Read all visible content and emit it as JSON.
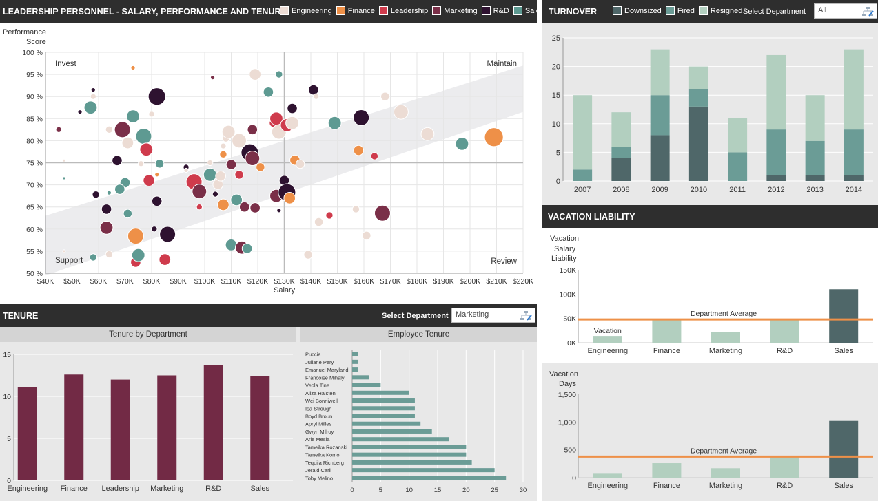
{
  "scatter_panel": {
    "title": "LEADERSHIP PERSONNEL - SALARY, PERFORMANCE AND TENURE",
    "legend": [
      {
        "label": "Engineering",
        "color": "#ecdcd4"
      },
      {
        "label": "Finance",
        "color": "#ee9048"
      },
      {
        "label": "Leadership",
        "color": "#cf3b4c"
      },
      {
        "label": "Marketing",
        "color": "#7a2f48"
      },
      {
        "label": "R&D",
        "color": "#2e1230"
      },
      {
        "label": "Sales",
        "color": "#5e9a92"
      }
    ],
    "ylabel_line1": "Performance",
    "ylabel_line2": "Score",
    "xlabel": "Salary",
    "quadrants": {
      "tl": "Invest",
      "tr": "Maintain",
      "bl": "Support",
      "br": "Review"
    }
  },
  "turnover_panel": {
    "title": "TURNOVER",
    "legend": [
      {
        "label": "Downsized",
        "color": "#4f6769"
      },
      {
        "label": "Fired",
        "color": "#6b9c96"
      },
      {
        "label": "Resigned",
        "color": "#b2cfbf"
      }
    ],
    "select_label": "Select Department",
    "select_value": "All"
  },
  "tenure_panel": {
    "title": "TENURE",
    "select_label": "Select Department",
    "select_value": "Marketing",
    "left_subtitle": "Tenure by Department",
    "right_subtitle": "Employee Tenure"
  },
  "vacation_panel": {
    "title": "VACATION LIABILITY",
    "salary_ylabel": [
      "Vacation",
      "Salary",
      "Liability"
    ],
    "days_ylabel": [
      "Vacation",
      "Days"
    ],
    "avg_label": "Department Average",
    "bar_annotation": "Vacation"
  },
  "chart_data": [
    {
      "id": "scatter",
      "type": "scatter",
      "title": "LEADERSHIP PERSONNEL - SALARY, PERFORMANCE AND TENURE",
      "xlabel": "Salary",
      "ylabel": "Performance Score",
      "xlim": [
        40000,
        220000
      ],
      "ylim": [
        50,
        100
      ],
      "xticks": [
        "$40K",
        "$50K",
        "$60K",
        "$70K",
        "$80K",
        "$90K",
        "$100K",
        "$110K",
        "$120K",
        "$130K",
        "$140K",
        "$150K",
        "$160K",
        "$170K",
        "$180K",
        "$190K",
        "$200K",
        "$210K",
        "$220K"
      ],
      "yticks": [
        "50 %",
        "55 %",
        "60 %",
        "65 %",
        "70 %",
        "75 %",
        "80 %",
        "85 %",
        "90 %",
        "95 %",
        "100 %"
      ],
      "reference_lines": {
        "x": 130000,
        "y": 75
      },
      "grid": true,
      "points": [
        {
          "x": 45000,
          "y": 82.5,
          "size": 3,
          "dept": "Marketing"
        },
        {
          "x": 47000,
          "y": 75.5,
          "size": 1,
          "dept": "Engineering"
        },
        {
          "x": 47000,
          "y": 71.5,
          "size": 1,
          "dept": "Sales"
        },
        {
          "x": 58000,
          "y": 90,
          "size": 3,
          "dept": "Engineering"
        },
        {
          "x": 58000,
          "y": 91.5,
          "size": 2,
          "dept": "R&D"
        },
        {
          "x": 57000,
          "y": 87.5,
          "size": 8,
          "dept": "Sales"
        },
        {
          "x": 53000,
          "y": 86.5,
          "size": 2,
          "dept": "R&D"
        },
        {
          "x": 64000,
          "y": 82.5,
          "size": 4,
          "dept": "Engineering"
        },
        {
          "x": 67000,
          "y": 75.5,
          "size": 6,
          "dept": "R&D"
        },
        {
          "x": 69000,
          "y": 82.5,
          "size": 10,
          "dept": "Marketing"
        },
        {
          "x": 71000,
          "y": 79.5,
          "size": 7,
          "dept": "Engineering"
        },
        {
          "x": 73000,
          "y": 85.5,
          "size": 8,
          "dept": "Sales"
        },
        {
          "x": 73000,
          "y": 96.5,
          "size": 2,
          "dept": "Finance"
        },
        {
          "x": 77000,
          "y": 81,
          "size": 10,
          "dept": "Sales"
        },
        {
          "x": 78000,
          "y": 78,
          "size": 8,
          "dept": "Leadership"
        },
        {
          "x": 80000,
          "y": 86,
          "size": 3,
          "dept": "Engineering"
        },
        {
          "x": 82000,
          "y": 90,
          "size": 11,
          "dept": "R&D"
        },
        {
          "x": 83000,
          "y": 74.8,
          "size": 5,
          "dept": "Sales"
        },
        {
          "x": 82000,
          "y": 72.3,
          "size": 2,
          "dept": "Finance"
        },
        {
          "x": 79000,
          "y": 71,
          "size": 7,
          "dept": "Leadership"
        },
        {
          "x": 70000,
          "y": 70.5,
          "size": 6,
          "dept": "Sales"
        },
        {
          "x": 68000,
          "y": 69,
          "size": 6,
          "dept": "Sales"
        },
        {
          "x": 64000,
          "y": 68.2,
          "size": 2,
          "dept": "Sales"
        },
        {
          "x": 59000,
          "y": 67.8,
          "size": 4,
          "dept": "R&D"
        },
        {
          "x": 63000,
          "y": 64.5,
          "size": 6,
          "dept": "R&D"
        },
        {
          "x": 71000,
          "y": 63.5,
          "size": 5,
          "dept": "Sales"
        },
        {
          "x": 63000,
          "y": 60.3,
          "size": 8,
          "dept": "Marketing"
        },
        {
          "x": 74000,
          "y": 58.4,
          "size": 10,
          "dept": "Finance"
        },
        {
          "x": 81000,
          "y": 60,
          "size": 3,
          "dept": "R&D"
        },
        {
          "x": 82000,
          "y": 66.3,
          "size": 6,
          "dept": "R&D"
        },
        {
          "x": 86000,
          "y": 58.8,
          "size": 10,
          "dept": "R&D"
        },
        {
          "x": 85000,
          "y": 53.1,
          "size": 7,
          "dept": "Leadership"
        },
        {
          "x": 74000,
          "y": 52.5,
          "size": 6,
          "dept": "Leadership"
        },
        {
          "x": 75000,
          "y": 54.1,
          "size": 8,
          "dept": "Sales"
        },
        {
          "x": 64000,
          "y": 54.3,
          "size": 4,
          "dept": "Engineering"
        },
        {
          "x": 58000,
          "y": 53.6,
          "size": 4,
          "dept": "Sales"
        },
        {
          "x": 47000,
          "y": 55,
          "size": 1,
          "dept": "Engineering"
        },
        {
          "x": 76000,
          "y": 74.8,
          "size": 3,
          "dept": "Engineering"
        },
        {
          "x": 93000,
          "y": 74,
          "size": 3,
          "dept": "R&D"
        },
        {
          "x": 93000,
          "y": 73.3,
          "size": 2,
          "dept": "Engineering"
        },
        {
          "x": 96000,
          "y": 70.7,
          "size": 10,
          "dept": "Leadership"
        },
        {
          "x": 98000,
          "y": 68.5,
          "size": 9,
          "dept": "Marketing"
        },
        {
          "x": 98000,
          "y": 65,
          "size": 3,
          "dept": "Leadership"
        },
        {
          "x": 102000,
          "y": 75,
          "size": 3,
          "dept": "Engineering"
        },
        {
          "x": 102000,
          "y": 72.3,
          "size": 8,
          "dept": "Sales"
        },
        {
          "x": 103000,
          "y": 94.3,
          "size": 2,
          "dept": "Marketing"
        },
        {
          "x": 104000,
          "y": 67.9,
          "size": 3,
          "dept": "R&D"
        },
        {
          "x": 105000,
          "y": 70.1,
          "size": 6,
          "dept": "Engineering"
        },
        {
          "x": 106000,
          "y": 72,
          "size": 6,
          "dept": "Engineering"
        },
        {
          "x": 107000,
          "y": 78.8,
          "size": 3,
          "dept": "Engineering"
        },
        {
          "x": 107000,
          "y": 76.9,
          "size": 4,
          "dept": "Finance"
        },
        {
          "x": 107000,
          "y": 65.5,
          "size": 7,
          "dept": "Finance"
        },
        {
          "x": 108000,
          "y": 80.5,
          "size": 4,
          "dept": "Engineering"
        },
        {
          "x": 109000,
          "y": 82,
          "size": 8,
          "dept": "Engineering"
        },
        {
          "x": 110000,
          "y": 74.6,
          "size": 6,
          "dept": "Marketing"
        },
        {
          "x": 110000,
          "y": 56.4,
          "size": 7,
          "dept": "Sales"
        },
        {
          "x": 112000,
          "y": 66.6,
          "size": 7,
          "dept": "Sales"
        },
        {
          "x": 113000,
          "y": 72.3,
          "size": 5,
          "dept": "Leadership"
        },
        {
          "x": 113000,
          "y": 80,
          "size": 9,
          "dept": "Engineering"
        },
        {
          "x": 114000,
          "y": 55.8,
          "size": 8,
          "dept": "Marketing"
        },
        {
          "x": 115000,
          "y": 65,
          "size": 6,
          "dept": "Marketing"
        },
        {
          "x": 116000,
          "y": 55.6,
          "size": 6,
          "dept": "Sales"
        },
        {
          "x": 117000,
          "y": 77.3,
          "size": 11,
          "dept": "R&D"
        },
        {
          "x": 118000,
          "y": 76,
          "size": 9,
          "dept": "Marketing"
        },
        {
          "x": 118000,
          "y": 82.5,
          "size": 6,
          "dept": "Marketing"
        },
        {
          "x": 119000,
          "y": 95,
          "size": 7,
          "dept": "Engineering"
        },
        {
          "x": 119000,
          "y": 64.8,
          "size": 6,
          "dept": "Marketing"
        },
        {
          "x": 121000,
          "y": 74,
          "size": 5,
          "dept": "Finance"
        },
        {
          "x": 124000,
          "y": 91,
          "size": 6,
          "dept": "Sales"
        },
        {
          "x": 126000,
          "y": 84,
          "size": 5,
          "dept": "Leadership"
        },
        {
          "x": 127000,
          "y": 85,
          "size": 8,
          "dept": "Leadership"
        },
        {
          "x": 127000,
          "y": 67.5,
          "size": 8,
          "dept": "Marketing"
        },
        {
          "x": 128000,
          "y": 82,
          "size": 9,
          "dept": "Engineering"
        },
        {
          "x": 128000,
          "y": 95,
          "size": 4,
          "dept": "Sales"
        },
        {
          "x": 128000,
          "y": 64.2,
          "size": 2,
          "dept": "R&D"
        },
        {
          "x": 130000,
          "y": 71,
          "size": 6,
          "dept": "R&D"
        },
        {
          "x": 131000,
          "y": 68.3,
          "size": 11,
          "dept": "R&D"
        },
        {
          "x": 131000,
          "y": 83.5,
          "size": 8,
          "dept": "Leadership"
        },
        {
          "x": 132000,
          "y": 67,
          "size": 7,
          "dept": "Finance"
        },
        {
          "x": 133000,
          "y": 87.3,
          "size": 6,
          "dept": "R&D"
        },
        {
          "x": 133000,
          "y": 84,
          "size": 8,
          "dept": "Engineering"
        },
        {
          "x": 134000,
          "y": 75.6,
          "size": 6,
          "dept": "Finance"
        },
        {
          "x": 136000,
          "y": 74.7,
          "size": 5,
          "dept": "Engineering"
        },
        {
          "x": 139000,
          "y": 54.2,
          "size": 5,
          "dept": "Engineering"
        },
        {
          "x": 141000,
          "y": 91.5,
          "size": 6,
          "dept": "R&D"
        },
        {
          "x": 142000,
          "y": 90,
          "size": 3,
          "dept": "Engineering"
        },
        {
          "x": 143000,
          "y": 61.6,
          "size": 5,
          "dept": "Engineering"
        },
        {
          "x": 147000,
          "y": 63.1,
          "size": 4,
          "dept": "Leadership"
        },
        {
          "x": 149000,
          "y": 84,
          "size": 8,
          "dept": "Sales"
        },
        {
          "x": 157000,
          "y": 64.5,
          "size": 4,
          "dept": "Engineering"
        },
        {
          "x": 158000,
          "y": 77.8,
          "size": 6,
          "dept": "Finance"
        },
        {
          "x": 159000,
          "y": 85.2,
          "size": 10,
          "dept": "R&D"
        },
        {
          "x": 161000,
          "y": 58.5,
          "size": 5,
          "dept": "Engineering"
        },
        {
          "x": 164000,
          "y": 76.5,
          "size": 4,
          "dept": "Leadership"
        },
        {
          "x": 167000,
          "y": 63.6,
          "size": 10,
          "dept": "Marketing"
        },
        {
          "x": 168000,
          "y": 90,
          "size": 5,
          "dept": "Engineering"
        },
        {
          "x": 174000,
          "y": 86.5,
          "size": 9,
          "dept": "Engineering"
        },
        {
          "x": 184000,
          "y": 81.5,
          "size": 8,
          "dept": "Engineering"
        },
        {
          "x": 197000,
          "y": 79.3,
          "size": 8,
          "dept": "Sales"
        },
        {
          "x": 209000,
          "y": 80.8,
          "size": 12,
          "dept": "Finance"
        }
      ]
    },
    {
      "id": "turnover",
      "type": "bar",
      "stacked": true,
      "categories": [
        "2007",
        "2008",
        "2009",
        "2010",
        "2011",
        "2012",
        "2013",
        "2014"
      ],
      "series": [
        {
          "name": "Downsized",
          "values": [
            0,
            4,
            8,
            13,
            0,
            1,
            1,
            1
          ]
        },
        {
          "name": "Fired",
          "values": [
            2,
            2,
            7,
            3,
            5,
            8,
            6,
            8
          ]
        },
        {
          "name": "Resigned",
          "values": [
            13,
            6,
            8,
            4,
            6,
            13,
            8,
            14
          ]
        }
      ],
      "ylim": [
        0,
        25
      ],
      "yticks": [
        "0",
        "5",
        "10",
        "15",
        "20",
        "25"
      ]
    },
    {
      "id": "tenure_by_dept",
      "type": "bar",
      "title": "Tenure by Department",
      "categories": [
        "Engineering",
        "Finance",
        "Leadership",
        "Marketing",
        "R&D",
        "Sales"
      ],
      "values": [
        11.1,
        12.6,
        12,
        12.5,
        13.7,
        12.4
      ],
      "ylim": [
        0,
        15
      ],
      "yticks": [
        "0",
        "5",
        "10",
        "15"
      ]
    },
    {
      "id": "employee_tenure",
      "type": "bar",
      "orientation": "horizontal",
      "title": "Employee Tenure",
      "categories": [
        "Puccia",
        "Juliane Pery",
        "Emanuel Maryland",
        "Francoise Mihaly",
        "Veola Tine",
        "Aliza Haisten",
        "Wei Bonniwell",
        "Isa Strough",
        "Boyd Broun",
        "Apryl Milles",
        "Gwyn Milroy",
        "Arie Mesia",
        "Tameika Rozanski",
        "Tameika Komo",
        "Tequila Richberg",
        "Jerald Carli",
        "Toby Melino"
      ],
      "values": [
        1,
        1,
        1,
        3,
        5,
        10,
        11,
        11,
        11,
        12,
        14,
        17,
        20,
        20,
        21,
        25,
        27
      ],
      "xlim": [
        0,
        30
      ],
      "xticks": [
        "0",
        "5",
        "10",
        "15",
        "20",
        "25",
        "30"
      ]
    },
    {
      "id": "vacation_salary",
      "type": "bar",
      "categories": [
        "Engineering",
        "Finance",
        "Marketing",
        "R&D",
        "Sales"
      ],
      "values": [
        14000,
        47000,
        22000,
        47000,
        110000
      ],
      "average": 48000,
      "ylim": [
        0,
        150000
      ],
      "yticks": [
        "0K",
        "50K",
        "100K",
        "150K"
      ]
    },
    {
      "id": "vacation_days",
      "type": "bar",
      "categories": [
        "Engineering",
        "Finance",
        "Marketing",
        "R&D",
        "Sales"
      ],
      "values": [
        70,
        260,
        170,
        370,
        1020
      ],
      "average": 380,
      "ylim": [
        0,
        1500
      ],
      "yticks": [
        "0",
        "500",
        "1,000",
        "1,500"
      ]
    }
  ]
}
